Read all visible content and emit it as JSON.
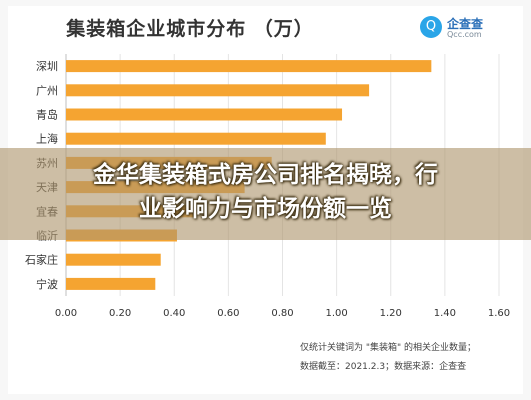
{
  "page": {
    "headline_line1": "金华集装箱式房公司排名揭晓，行",
    "headline_line2": "业影响力与市场份额一览"
  },
  "logo": {
    "icon": "search-icon",
    "icon_glyph": "Q",
    "name": "企查查",
    "url": "Qcc.com"
  },
  "footnotes": {
    "line1": "仅统计关键词为 \"集装箱\" 的相关企业数量；",
    "line2": "数据截至：2021.2.3；数据来源：企查查"
  },
  "chart_data": {
    "type": "bar",
    "orientation": "horizontal",
    "title": "集装箱企业城市分布 （万）",
    "categories": [
      "深圳",
      "广州",
      "青岛",
      "上海",
      "苏州",
      "天津",
      "宜春",
      "临沂",
      "石家庄",
      "宁波"
    ],
    "values": [
      1.35,
      1.12,
      1.02,
      0.96,
      0.76,
      0.66,
      0.47,
      0.41,
      0.35,
      0.33
    ],
    "xlim": [
      0,
      1.6
    ],
    "xticks": [
      "0.00",
      "0.20",
      "0.40",
      "0.60",
      "0.80",
      "1.00",
      "1.20",
      "1.40",
      "1.60"
    ],
    "bar_color": "#f5a431",
    "grid": true,
    "legend": "none"
  }
}
